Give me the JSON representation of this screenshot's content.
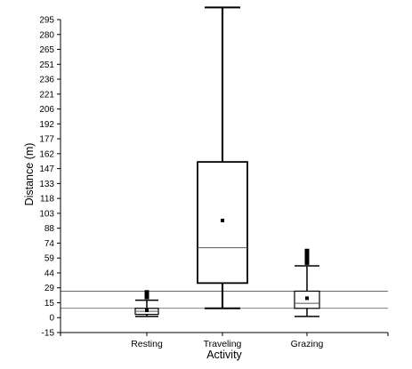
{
  "chart_data": {
    "type": "box",
    "xlabel": "Activity",
    "ylabel": "Distance (m)",
    "ylim": [
      -15,
      295
    ],
    "y_ticks": [
      "-15",
      "0",
      "15",
      "29",
      "44",
      "59",
      "74",
      "88",
      "103",
      "118",
      "133",
      "147",
      "162",
      "177",
      "192",
      "206",
      "221",
      "236",
      "251",
      "265",
      "280",
      "295"
    ],
    "categories": [
      "Resting",
      "Traveling",
      "Grazing"
    ],
    "boxes": [
      {
        "category": "Resting",
        "whisker_low": 1,
        "q1": 3,
        "median": 6,
        "q3": 9,
        "whisker_high": 17,
        "mean": 7,
        "outliers_from": 18,
        "outliers_to": 27
      },
      {
        "category": "Traveling",
        "whisker_low": 9,
        "q1": 34,
        "median": 69,
        "q3": 154,
        "whisker_high": 307,
        "mean": 96,
        "outliers_from": null,
        "outliers_to": null
      },
      {
        "category": "Grazing",
        "whisker_low": 1,
        "q1": 9,
        "median": 14,
        "q3": 26,
        "whisker_high": 51,
        "mean": 19,
        "outliers_from": 52,
        "outliers_to": 68
      }
    ],
    "reference_lines": [
      9,
      26
    ],
    "grid": false,
    "legend": "none"
  }
}
